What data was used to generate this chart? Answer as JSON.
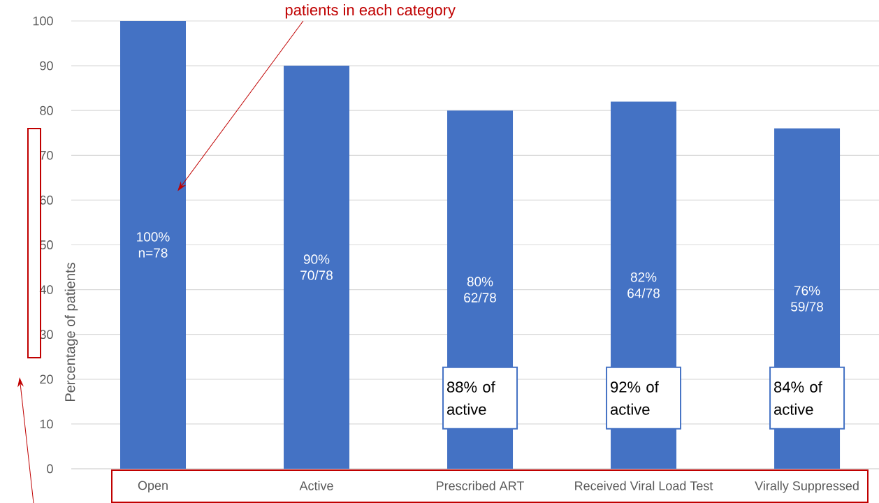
{
  "chart_data": {
    "type": "bar",
    "ylabel": "Percentage of patients",
    "categories": [
      "Open",
      "Active",
      "Prescribed ART",
      "Received Viral Load Test",
      "Virally Suppressed"
    ],
    "values": [
      100,
      90,
      80,
      82,
      76
    ],
    "color": "#4472c4",
    "ylim": [
      0,
      100
    ],
    "yticks": [
      0,
      10,
      20,
      30,
      40,
      50,
      60,
      70,
      80,
      90,
      100
    ],
    "grid": "y",
    "value_labels": [
      "100% n=78",
      "90% 70/78",
      "80% 62/78",
      "82% 64/78",
      "76% 59/78"
    ],
    "annotations": [
      "patients in each category",
      "88% of active",
      "92% of active",
      "84% of active"
    ]
  }
}
